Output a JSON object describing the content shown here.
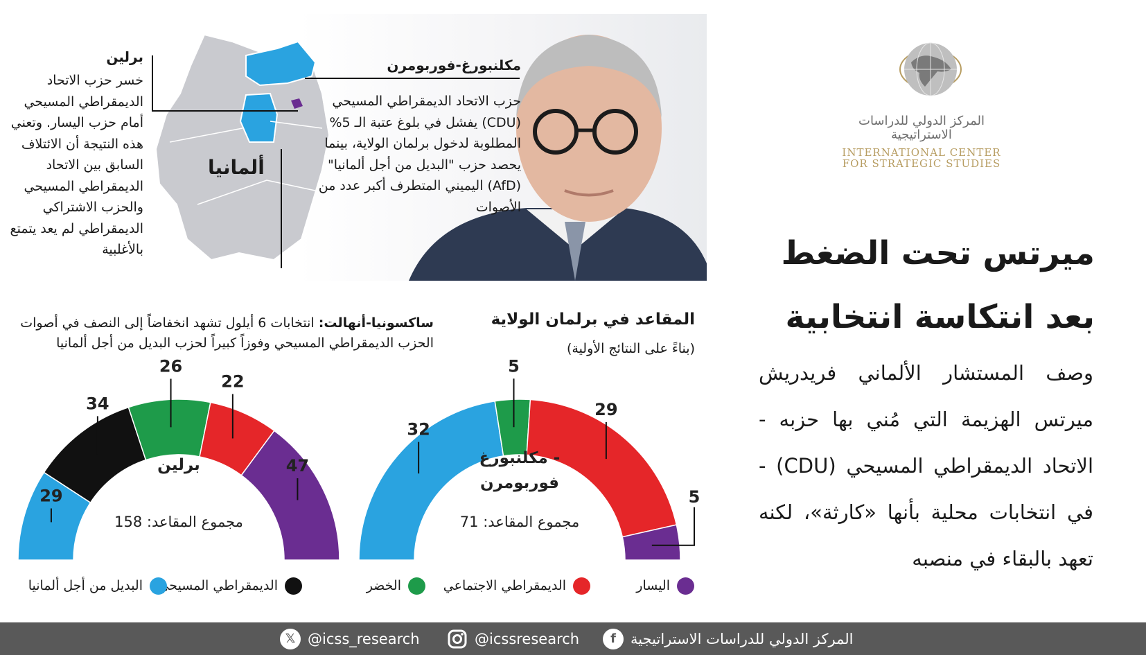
{
  "logo": {
    "arabic": "المركز الدولي للدراسات الاستراتيجية",
    "english_line1": "INTERNATIONAL CENTER",
    "english_line2": "FOR STRATEGIC STUDIES"
  },
  "colors": {
    "afd": "#2aa3e0",
    "cdu": "#111111",
    "greens": "#1e9b4a",
    "spd": "#e52629",
    "left": "#6a2d91",
    "map_gray": "#c9cacf",
    "footer": "#595959",
    "logo_gold": "#b79d62"
  },
  "headline": {
    "line1": "ميرتس تحت الضغط",
    "line2": "بعد انتكاسة انتخابية"
  },
  "body_text": "وصف المستشار الألماني فريدريش ميرتس الهزيمة التي مُني بها حزبه - الاتحاد الديمقراطي المسيحي (CDU) - في انتخابات محلية بأنها «كارثة»، لكنه تعهد بالبقاء في منصبه",
  "map": {
    "country_label": "ألمانيا",
    "mv_title": "مكلنبورغ-فوربومرن",
    "mv_text": "حزب الاتحاد الديمقراطي المسيحي (CDU) يفشل في بلوغ عتبة الـ 5% المطلوبة لدخول برلمان الولاية، بينما يحصد حزب \"البديل من أجل ألمانيا\" (AfD) اليميني المتطرف أكبر عدد من الأصوات",
    "berlin_title": "برلين",
    "berlin_text": "خسر حزب الاتحاد الديمقراطي المسيحي أمام حزب اليسار. وتعني هذه النتيجة أن الائتلاف السابق بين الاتحاد الديمقراطي المسيحي والحزب الاشتراكي الديمقراطي لم يعد يتمتع بالأغلبية"
  },
  "seats_section": {
    "title": "المقاعد في برلمان الولاية",
    "subtitle": "(بناءً على النتائج الأولية)"
  },
  "saxony": {
    "title": "ساكسونيا-أنهالت:",
    "text": "انتخابات 6 أيلول تشهد انخفاضاً إلى النصف في أصوات الحزب الديمقراطي المسيحي وفوزاً كبيراً لحزب البديل من أجل ألمانيا"
  },
  "chart_data": [
    {
      "type": "pie",
      "subtype": "half-donut parliament",
      "title": "مكلنبورغ - فوربومرن",
      "total_label": "مجموع المقاعد:",
      "total": 71,
      "categories": [
        "البديل من أجل ألمانيا",
        "الخضر",
        "الديمقراطي الاجتماعي",
        "اليسار"
      ],
      "values": [
        32,
        5,
        29,
        5
      ],
      "colors": [
        "#2aa3e0",
        "#1e9b4a",
        "#e52629",
        "#6a2d91"
      ]
    },
    {
      "type": "pie",
      "subtype": "half-donut parliament",
      "title": "برلين",
      "total_label": "مجموع المقاعد:",
      "total": 158,
      "categories": [
        "البديل من أجل ألمانيا",
        "الديمقراطي المسيحي",
        "الخضر",
        "الديمقراطي الاجتماعي",
        "اليسار"
      ],
      "values": [
        29,
        34,
        26,
        22,
        47
      ],
      "colors": [
        "#2aa3e0",
        "#111111",
        "#1e9b4a",
        "#e52629",
        "#6a2d91"
      ]
    }
  ],
  "legend": [
    {
      "label": "اليسار",
      "color": "#6a2d91"
    },
    {
      "label": "الديمقراطي الاجتماعي",
      "color": "#e52629"
    },
    {
      "label": "الخضر",
      "color": "#1e9b4a"
    },
    {
      "label": "الديمقراطي المسيحي",
      "color": "#111111"
    },
    {
      "label": "البديل من أجل ألمانيا",
      "color": "#2aa3e0"
    }
  ],
  "footer": {
    "facebook_text": "المركز الدولي للدراسات الاستراتيجية",
    "facebook_icon": "f",
    "instagram_text": "@icssresearch",
    "x_text": "@icss_research",
    "x_icon": "𝕏"
  }
}
